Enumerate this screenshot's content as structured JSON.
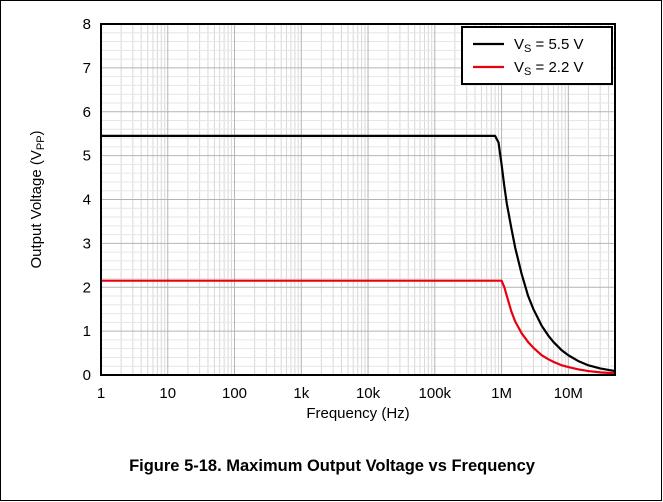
{
  "caption": "Figure 5-18. Maximum Output Voltage vs Frequency",
  "chart_data": {
    "type": "line",
    "title": "",
    "xlabel": "Frequency (Hz)",
    "ylabel": {
      "main": "Output Voltage (V",
      "sub": "PP",
      "end": ")"
    },
    "xscale": "log",
    "xlim": [
      1,
      50000000
    ],
    "ylim": [
      0,
      8
    ],
    "yticks": [
      0,
      1,
      2,
      3,
      4,
      5,
      6,
      7,
      8
    ],
    "xticks": [
      {
        "value": 1,
        "label": "1"
      },
      {
        "value": 10,
        "label": "10"
      },
      {
        "value": 100,
        "label": "100"
      },
      {
        "value": 1000,
        "label": "1k"
      },
      {
        "value": 10000,
        "label": "10k"
      },
      {
        "value": 100000,
        "label": "100k"
      },
      {
        "value": 1000000,
        "label": "1M"
      },
      {
        "value": 10000000,
        "label": "10M"
      }
    ],
    "grid": true,
    "legend_position": "top-right",
    "series": [
      {
        "name": "VS = 5.5 V",
        "label_main": "V",
        "label_sub": "S",
        "label_end": " = 5.5 V",
        "color": "#000000",
        "x": [
          1,
          100000,
          800000,
          900000,
          1000000,
          1100000,
          1200000,
          1400000,
          1600000,
          2000000,
          2500000,
          3000000,
          4000000,
          5000000,
          6000000,
          8000000,
          10000000,
          14000000,
          20000000,
          30000000,
          50000000
        ],
        "y": [
          5.45,
          5.45,
          5.45,
          5.3,
          4.8,
          4.3,
          3.9,
          3.35,
          2.9,
          2.3,
          1.8,
          1.5,
          1.12,
          0.9,
          0.75,
          0.56,
          0.45,
          0.32,
          0.22,
          0.15,
          0.09
        ]
      },
      {
        "name": "VS = 2.2 V",
        "label_main": "V",
        "label_sub": "S",
        "label_end": " = 2.2 V",
        "color": "#e8000e",
        "x": [
          1,
          100000,
          1000000,
          1100000,
          1200000,
          1400000,
          1600000,
          2000000,
          2500000,
          3000000,
          4000000,
          5000000,
          6000000,
          8000000,
          10000000,
          14000000,
          20000000,
          30000000,
          50000000
        ],
        "y": [
          2.15,
          2.15,
          2.15,
          2.0,
          1.8,
          1.45,
          1.22,
          0.95,
          0.75,
          0.62,
          0.45,
          0.36,
          0.3,
          0.22,
          0.18,
          0.13,
          0.09,
          0.06,
          0.04
        ]
      }
    ]
  }
}
